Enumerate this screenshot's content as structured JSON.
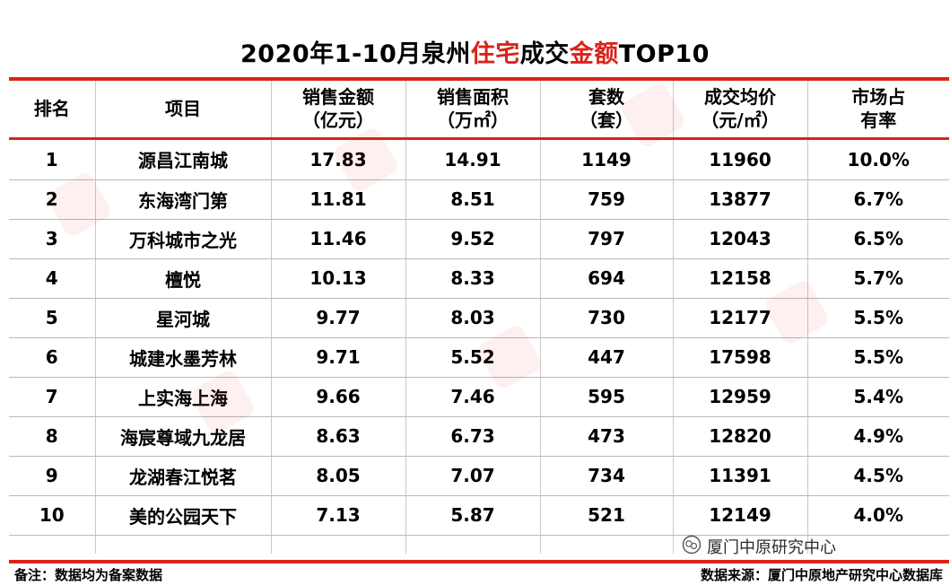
{
  "title": {
    "part1": "2020年1-10月泉州",
    "part2": "住宅",
    "part3": "成交",
    "part4": "金额",
    "part5": "TOP10"
  },
  "headers": {
    "rank": "排名",
    "project": "项目",
    "amount_l1": "销售金额",
    "amount_l2": "（亿元）",
    "area_l1": "销售面积",
    "area_l2": "（万㎡）",
    "units_l1": "套数",
    "units_l2": "（套）",
    "price_l1": "成交均价",
    "price_l2": "（元/㎡）",
    "share_l1": "市场占",
    "share_l2": "有率"
  },
  "rows": [
    {
      "rank": "1",
      "project": "源昌江南城",
      "amount": "17.83",
      "area": "14.91",
      "units": "1149",
      "price": "11960",
      "share": "10.0%"
    },
    {
      "rank": "2",
      "project": "东海湾门第",
      "amount": "11.81",
      "area": "8.51",
      "units": "759",
      "price": "13877",
      "share": "6.7%"
    },
    {
      "rank": "3",
      "project": "万科城市之光",
      "amount": "11.46",
      "area": "9.52",
      "units": "797",
      "price": "12043",
      "share": "6.5%"
    },
    {
      "rank": "4",
      "project": "檀悦",
      "amount": "10.13",
      "area": "8.33",
      "units": "694",
      "price": "12158",
      "share": "5.7%"
    },
    {
      "rank": "5",
      "project": "星河城",
      "amount": "9.77",
      "area": "8.03",
      "units": "730",
      "price": "12177",
      "share": "5.5%"
    },
    {
      "rank": "6",
      "project": "城建水墨芳林",
      "amount": "9.71",
      "area": "5.52",
      "units": "447",
      "price": "17598",
      "share": "5.5%"
    },
    {
      "rank": "7",
      "project": "上实海上海",
      "amount": "9.66",
      "area": "7.46",
      "units": "595",
      "price": "12959",
      "share": "5.4%"
    },
    {
      "rank": "8",
      "project": "海宸尊域九龙居",
      "amount": "8.63",
      "area": "6.73",
      "units": "473",
      "price": "12820",
      "share": "4.9%"
    },
    {
      "rank": "9",
      "project": "龙湖春江悦茗",
      "amount": "8.05",
      "area": "7.07",
      "units": "734",
      "price": "11391",
      "share": "4.5%"
    },
    {
      "rank": "10",
      "project": "美的公园天下",
      "amount": "7.13",
      "area": "5.87",
      "units": "521",
      "price": "12149",
      "share": "4.0%"
    }
  ],
  "footer": {
    "note": "备注：数据均为备案数据",
    "source": "数据来源：厦门中原地产研究中心数据库"
  },
  "wechat_mark": "厦门中原研究中心",
  "colors": {
    "accent": "#d9241c"
  }
}
